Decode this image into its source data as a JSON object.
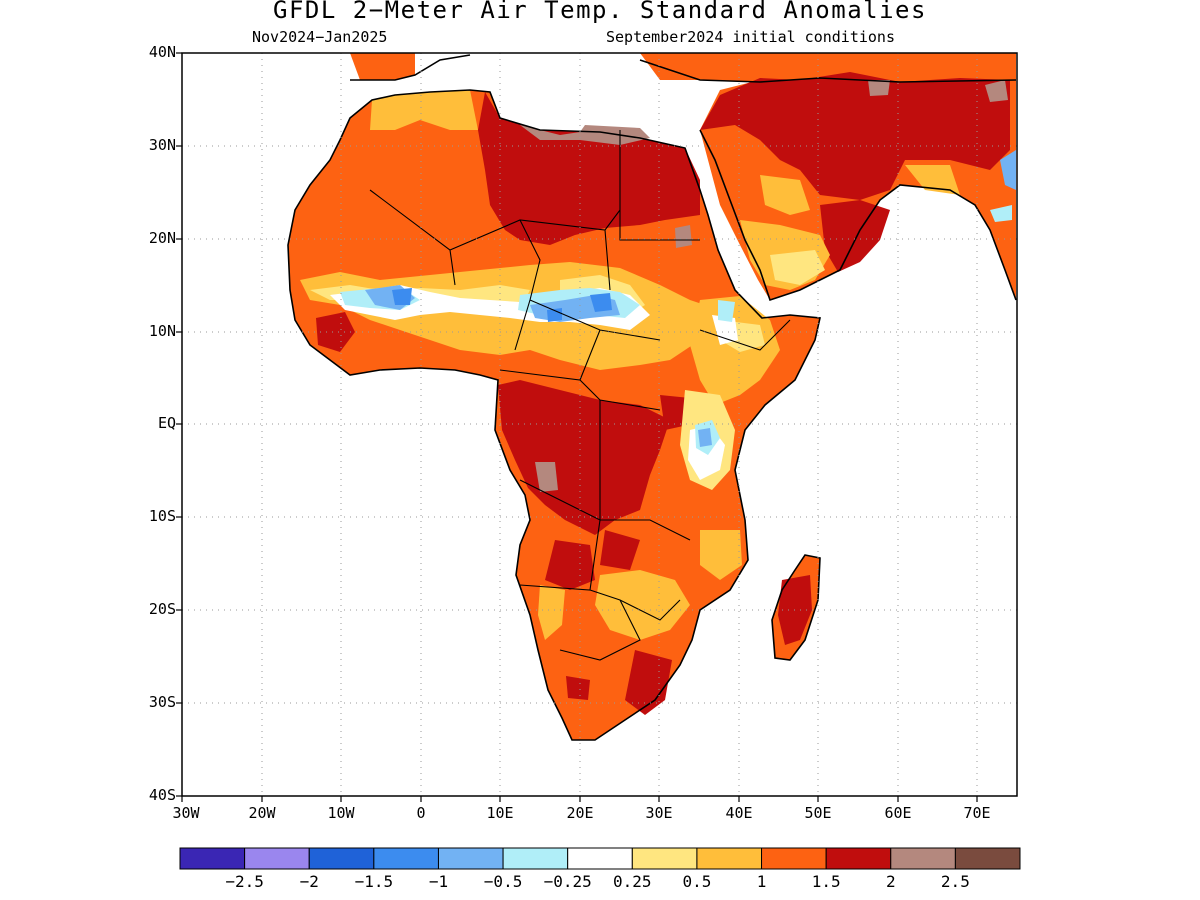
{
  "title": "GFDL 2−Meter Air Temp. Standard Anomalies",
  "period": "Nov2024−Jan2025",
  "init": "September2024 initial conditions",
  "lat_labels": [
    "40N",
    "30N",
    "20N",
    "10N",
    "EQ",
    "10S",
    "20S",
    "30S",
    "40S"
  ],
  "lon_labels": [
    "30W",
    "20W",
    "10W",
    "0",
    "10E",
    "20E",
    "30E",
    "40E",
    "50E",
    "60E",
    "70E"
  ],
  "colorbar": {
    "colors": [
      "#3a26b4",
      "#9a86ee",
      "#1f62d8",
      "#3c8cef",
      "#72b2f3",
      "#b0eef8",
      "#ffffff",
      "#ffe680",
      "#ffbe3a",
      "#fd6212",
      "#c00d0d",
      "#b4887e",
      "#7a4b3e"
    ],
    "labels": [
      "−2.5",
      "−2",
      "−1.5",
      "−1",
      "−0.5",
      "−0.25",
      "0.25",
      "0.5",
      "1",
      "1.5",
      "2",
      "2.5"
    ]
  },
  "map": {
    "lon_range": [
      -30,
      75
    ],
    "lat_range": [
      -40,
      40
    ],
    "grid": true,
    "variable": "2-meter air temperature standard anomaly"
  }
}
